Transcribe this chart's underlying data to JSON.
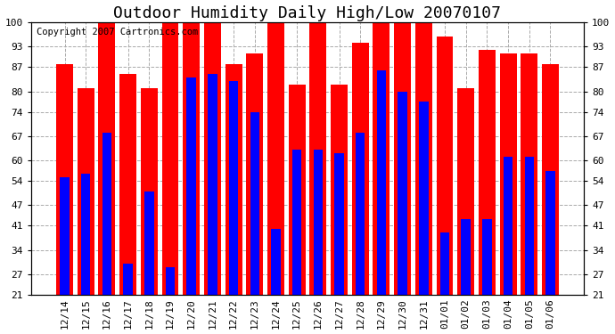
{
  "title": "Outdoor Humidity Daily High/Low 20070107",
  "copyright": "Copyright 2007 Cartronics.com",
  "dates": [
    "12/14",
    "12/15",
    "12/16",
    "12/17",
    "12/18",
    "12/19",
    "12/20",
    "12/21",
    "12/22",
    "12/23",
    "12/24",
    "12/25",
    "12/26",
    "12/27",
    "12/28",
    "12/29",
    "12/30",
    "12/31",
    "01/01",
    "01/02",
    "01/03",
    "01/04",
    "01/05",
    "01/06"
  ],
  "highs": [
    88,
    81,
    100,
    85,
    81,
    100,
    100,
    100,
    88,
    91,
    100,
    82,
    100,
    82,
    94,
    100,
    100,
    100,
    96,
    81,
    92,
    91,
    91,
    88
  ],
  "lows": [
    55,
    56,
    68,
    30,
    51,
    29,
    84,
    85,
    83,
    74,
    40,
    63,
    63,
    62,
    68,
    86,
    80,
    77,
    39,
    43,
    43,
    61,
    61,
    57
  ],
  "high_color": "#ff0000",
  "low_color": "#0000ff",
  "bg_color": "#ffffff",
  "plot_bg_color": "#ffffff",
  "grid_color": "#aaaaaa",
  "yticks": [
    21,
    27,
    34,
    41,
    47,
    54,
    60,
    67,
    74,
    80,
    87,
    93,
    100
  ],
  "ymin": 21,
  "ymax": 100,
  "title_fontsize": 13,
  "tick_fontsize": 8,
  "copyright_fontsize": 7.5
}
